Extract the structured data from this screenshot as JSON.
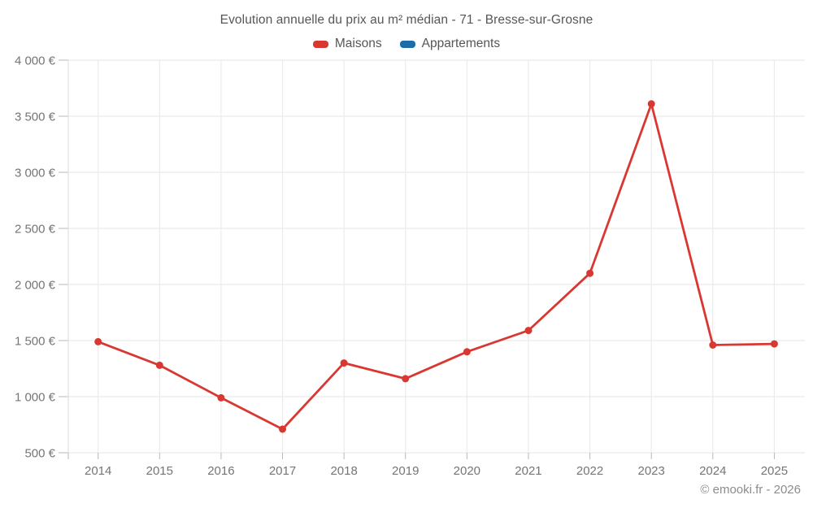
{
  "title": "Evolution annuelle du prix au m² médian - 71 - Bresse-sur-Grosne",
  "footer": "© emooki.fr - 2026",
  "legend": [
    {
      "label": "Maisons",
      "color": "#d93832"
    },
    {
      "label": "Appartements",
      "color": "#1a6da6"
    }
  ],
  "colors": {
    "grid": "#ebebeb",
    "axis": "#e0e0e0",
    "tick": "#b8b8b8",
    "label": "#757575",
    "title": "#565656",
    "footer": "#8c8c8c"
  },
  "chart_data": {
    "type": "line",
    "title": "Evolution annuelle du prix au m² médian - 71 - Bresse-sur-Grosne",
    "x": [
      2014,
      2015,
      2016,
      2017,
      2018,
      2019,
      2020,
      2021,
      2022,
      2023,
      2024,
      2025
    ],
    "series": [
      {
        "name": "Maisons",
        "color": "#d93832",
        "values": [
          1490,
          1280,
          990,
          710,
          1300,
          1160,
          1400,
          1590,
          2100,
          3610,
          1460,
          1470
        ]
      },
      {
        "name": "Appartements",
        "color": "#1a6da6",
        "values": []
      }
    ],
    "ylim": [
      500,
      4000
    ],
    "ytick_step": 500,
    "ytick_labels": [
      "500 €",
      "1 000 €",
      "1 500 €",
      "2 000 €",
      "2 500 €",
      "3 000 €",
      "3 500 €",
      "4 000 €"
    ],
    "xtick_labels": [
      "2014",
      "2015",
      "2016",
      "2017",
      "2018",
      "2019",
      "2020",
      "2021",
      "2022",
      "2023",
      "2024",
      "2025"
    ],
    "grid": true,
    "legend_position": "top",
    "unit": "€/m²"
  }
}
